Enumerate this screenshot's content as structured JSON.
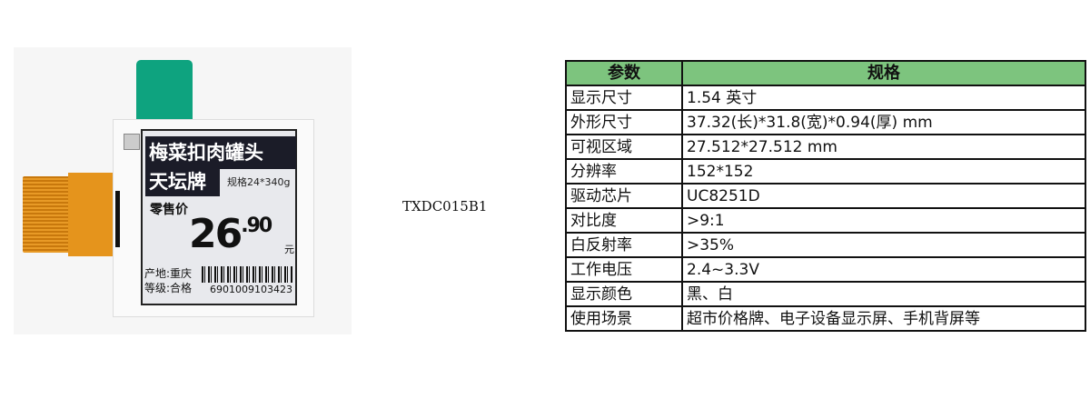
{
  "product_image": {
    "label_title_line1": "梅菜扣肉罐头",
    "label_title_line2": "天坛牌",
    "label_spec": "规格24*340g",
    "label_price_title": "零售价",
    "label_price_main": "26",
    "label_price_cents": ".90",
    "label_currency": "元",
    "label_origin": "产地:重庆",
    "label_grade": "等级:合格",
    "label_barcode_number": "6901009103423",
    "colors": {
      "tab": "#0ea37f",
      "fpc": "#e5941c"
    }
  },
  "model": "TXDC015B1",
  "spec_table": {
    "header_color": "#7dc47e",
    "headers": [
      "参数",
      "规格"
    ],
    "rows": [
      {
        "param": "显示尺寸",
        "value": "1.54 英寸"
      },
      {
        "param": "外形尺寸",
        "value": "37.32(长)*31.8(宽)*0.94(厚) mm"
      },
      {
        "param": "可视区域",
        "value": "27.512*27.512 mm"
      },
      {
        "param": "分辨率",
        "value": "152*152"
      },
      {
        "param": "驱动芯片",
        "value": "UC8251D"
      },
      {
        "param": "对比度",
        "value": ">9:1"
      },
      {
        "param": "白反射率",
        "value": ">35%"
      },
      {
        "param": "工作电压",
        "value": "2.4~3.3V"
      },
      {
        "param": "显示颜色",
        "value": "黑、白"
      },
      {
        "param": "使用场景",
        "value": "超市价格牌、电子设备显示屏、手机背屏等"
      }
    ]
  }
}
